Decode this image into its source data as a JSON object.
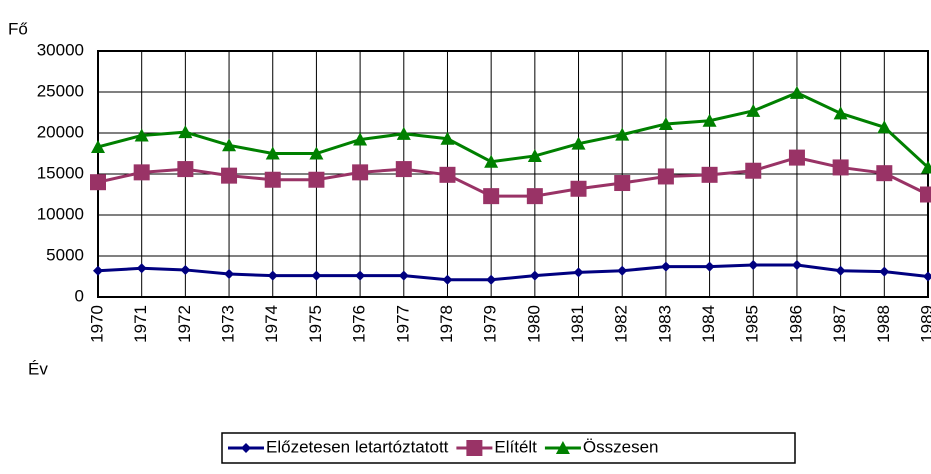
{
  "chart_data": {
    "type": "line",
    "y_label": "Fő",
    "x_label": "Év",
    "categories": [
      "1970",
      "1971",
      "1972",
      "1973",
      "1974",
      "1975",
      "1976",
      "1977",
      "1978",
      "1979",
      "1980",
      "1981",
      "1982",
      "1983",
      "1984",
      "1985",
      "1986",
      "1987",
      "1988",
      "1989"
    ],
    "series": [
      {
        "name": "Előzetesen letartóztatott",
        "color": "#000080",
        "marker": "diamond",
        "values": [
          3200,
          3500,
          3300,
          2800,
          2600,
          2600,
          2600,
          2600,
          2100,
          2100,
          2600,
          3000,
          3200,
          3700,
          3700,
          3900,
          3900,
          3200,
          3100,
          2500
        ]
      },
      {
        "name": "Elítélt",
        "color": "#993366",
        "marker": "square",
        "values": [
          14000,
          15200,
          15600,
          14800,
          14300,
          14300,
          15200,
          15600,
          14900,
          12300,
          12300,
          13200,
          13900,
          14700,
          14900,
          15400,
          17000,
          15800,
          15100,
          12500
        ]
      },
      {
        "name": "Összesen",
        "color": "#008000",
        "marker": "triangle",
        "values": [
          18300,
          19700,
          20100,
          18500,
          17500,
          17500,
          19200,
          19900,
          19300,
          16500,
          17200,
          18700,
          19800,
          21100,
          21500,
          22700,
          24900,
          22400,
          20700,
          15800
        ]
      }
    ],
    "ylim": [
      0,
      30000
    ],
    "yticks": [
      0,
      5000,
      10000,
      15000,
      20000,
      25000,
      30000
    ],
    "grid": true,
    "legend": "bottom"
  }
}
